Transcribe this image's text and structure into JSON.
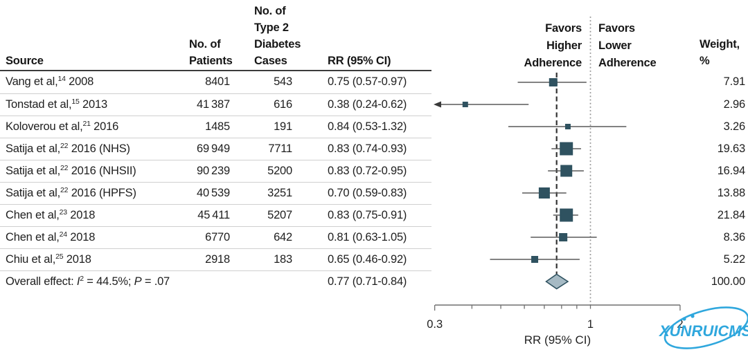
{
  "table": {
    "headers": {
      "source": "Source",
      "patients": [
        "No. of",
        "Patients"
      ],
      "cases": [
        "No. of",
        "Type 2",
        "Diabetes",
        "Cases"
      ],
      "rr": "RR (95% CI)",
      "weight": [
        "Weight,",
        "%"
      ]
    },
    "rows": [
      {
        "source_name": "Vang et al,",
        "source_ref": "14",
        "source_suffix": " 2008",
        "patients": "8401",
        "cases": "543",
        "rr_text": "0.75 (0.57-0.97)",
        "weight": "7.91"
      },
      {
        "source_name": "Tonstad et al,",
        "source_ref": "15",
        "source_suffix": " 2013",
        "patients": "41 387",
        "cases": "616",
        "rr_text": "0.38 (0.24-0.62)",
        "weight": "2.96"
      },
      {
        "source_name": "Koloverou et al,",
        "source_ref": "21",
        "source_suffix": " 2016",
        "patients": "1485",
        "cases": "191",
        "rr_text": "0.84 (0.53-1.32)",
        "weight": "3.26"
      },
      {
        "source_name": "Satija et al,",
        "source_ref": "22",
        "source_suffix": " 2016 (NHS)",
        "patients": "69 949",
        "cases": "7711",
        "rr_text": "0.83 (0.74-0.93)",
        "weight": "19.63"
      },
      {
        "source_name": "Satija et al,",
        "source_ref": "22",
        "source_suffix": " 2016 (NHSII)",
        "patients": "90 239",
        "cases": "5200",
        "rr_text": "0.83 (0.72-0.95)",
        "weight": "16.94"
      },
      {
        "source_name": "Satija et al,",
        "source_ref": "22",
        "source_suffix": " 2016 (HPFS)",
        "patients": "40 539",
        "cases": "3251",
        "rr_text": "0.70 (0.59-0.83)",
        "weight": "13.88"
      },
      {
        "source_name": "Chen et al,",
        "source_ref": "23",
        "source_suffix": " 2018",
        "patients": "45 411",
        "cases": "5207",
        "rr_text": "0.83 (0.75-0.91)",
        "weight": "21.84"
      },
      {
        "source_name": "Chen et al,",
        "source_ref": "24",
        "source_suffix": " 2018",
        "patients": "6770",
        "cases": "642",
        "rr_text": "0.81 (0.63-1.05)",
        "weight": "8.36"
      },
      {
        "source_name": "Chiu et al,",
        "source_ref": "25",
        "source_suffix": " 2018",
        "patients": "2918",
        "cases": "183",
        "rr_text": "0.65 (0.46-0.92)",
        "weight": "5.22"
      }
    ],
    "overall": {
      "prefix": "Overall effect: ",
      "i_label": "I",
      "i_sup": "2",
      "mid": " = 44.5%; ",
      "p_label": "P",
      "end": " = .07",
      "rr_text": "0.77 (0.71-0.84)",
      "weight": "100.00"
    }
  },
  "plot_labels": {
    "favors_left": [
      "Favors",
      "Higher",
      "Adherence"
    ],
    "favors_right": [
      "Favors",
      "Lower",
      "Adherence"
    ]
  },
  "chart_data": {
    "type": "forest",
    "title": "",
    "x_axis": {
      "label": "RR (95% CI)",
      "scale": "log",
      "min": 0.3,
      "max": 2,
      "ticks": [
        0.3,
        0.4,
        0.5,
        0.6,
        0.7,
        0.8,
        0.9,
        1,
        2
      ],
      "labeled_ticks": [
        {
          "v": 0.3,
          "label": "0.3"
        },
        {
          "v": 1,
          "label": "1"
        },
        {
          "v": 2,
          "label": "2"
        }
      ]
    },
    "reference_value": 1,
    "favors_left": "Favors Higher Adherence",
    "favors_right": "Favors Lower Adherence",
    "studies": [
      {
        "label": "Vang et al, 2008",
        "rr": 0.75,
        "ci": [
          0.57,
          0.97
        ],
        "weight": 7.91,
        "patients": 8401,
        "cases": 543
      },
      {
        "label": "Tonstad et al, 2013",
        "rr": 0.38,
        "ci": [
          0.24,
          0.62
        ],
        "weight": 2.96,
        "patients": 41387,
        "cases": 616,
        "ci_low_clipped": true
      },
      {
        "label": "Koloverou et al, 2016",
        "rr": 0.84,
        "ci": [
          0.53,
          1.32
        ],
        "weight": 3.26,
        "patients": 1485,
        "cases": 191
      },
      {
        "label": "Satija et al, 2016 (NHS)",
        "rr": 0.83,
        "ci": [
          0.74,
          0.93
        ],
        "weight": 19.63,
        "patients": 69949,
        "cases": 7711
      },
      {
        "label": "Satija et al, 2016 (NHSII)",
        "rr": 0.83,
        "ci": [
          0.72,
          0.95
        ],
        "weight": 16.94,
        "patients": 90239,
        "cases": 5200
      },
      {
        "label": "Satija et al, 2016 (HPFS)",
        "rr": 0.7,
        "ci": [
          0.59,
          0.83
        ],
        "weight": 13.88,
        "patients": 40539,
        "cases": 3251
      },
      {
        "label": "Chen et al, 2018",
        "rr": 0.83,
        "ci": [
          0.75,
          0.91
        ],
        "weight": 21.84,
        "patients": 45411,
        "cases": 5207
      },
      {
        "label": "Chen et al, 2018",
        "rr": 0.81,
        "ci": [
          0.63,
          1.05
        ],
        "weight": 8.36,
        "patients": 6770,
        "cases": 642
      },
      {
        "label": "Chiu et al, 2018",
        "rr": 0.65,
        "ci": [
          0.46,
          0.92
        ],
        "weight": 5.22,
        "patients": 2918,
        "cases": 183
      }
    ],
    "overall": {
      "label": "Overall effect",
      "rr": 0.77,
      "ci": [
        0.71,
        0.84
      ],
      "weight": 100.0,
      "i_squared": "44.5%",
      "p_value": ".07"
    }
  },
  "watermark": {
    "text": "XUNRUICMS",
    "color": "#2fa7dd"
  },
  "colors": {
    "marker": "#2f5260",
    "diamond_fill": "#a6bac4",
    "diamond_stroke": "#2f5260",
    "ci_line": "#585858",
    "arrow": "#3a3a3a",
    "dashed_line": "#333333",
    "dotted_line": "#909090",
    "axis": "#6f6f6f",
    "header_rule": "#3b3b3b",
    "row_separator": "#cfcfcf"
  }
}
